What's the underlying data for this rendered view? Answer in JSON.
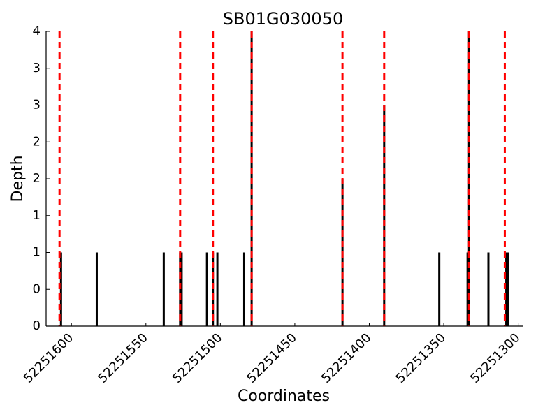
{
  "chart_data": {
    "type": "bar",
    "title": "SB01G030050",
    "x_label": "Coordinates",
    "y_label": "Depth",
    "x": [
      52251607,
      52251583,
      52251538,
      52251527,
      52251526,
      52251509,
      52251505,
      52251502,
      52251484,
      52251479,
      52251418,
      52251390,
      52251353,
      52251334,
      52251333,
      52251320,
      52251308,
      52251307
    ],
    "values": [
      1,
      1,
      1,
      1,
      1,
      1,
      1,
      1,
      1,
      4,
      2,
      3,
      1,
      1,
      4,
      1,
      1,
      1
    ],
    "color": "#000000",
    "vlines": [
      52251608,
      52251527,
      52251505,
      52251479,
      52251418,
      52251390,
      52251333,
      52251309
    ],
    "vline_color": "#ff0000",
    "xlim": [
      52251617,
      52251297
    ],
    "xticks": [
      52251600,
      52251550,
      52251500,
      52251450,
      52251400,
      52251350,
      52251300
    ],
    "ylim": [
      0,
      4
    ],
    "yticks": [
      {
        "value": 0,
        "label": "0"
      },
      {
        "value": 0.5,
        "label": "0"
      },
      {
        "value": 1,
        "label": "1"
      },
      {
        "value": 1.5,
        "label": "1"
      },
      {
        "value": 2,
        "label": "2"
      },
      {
        "value": 2.5,
        "label": "2"
      },
      {
        "value": 3,
        "label": "3"
      },
      {
        "value": 3.5,
        "label": "3"
      },
      {
        "value": 4,
        "label": "4"
      }
    ],
    "grid": false
  }
}
